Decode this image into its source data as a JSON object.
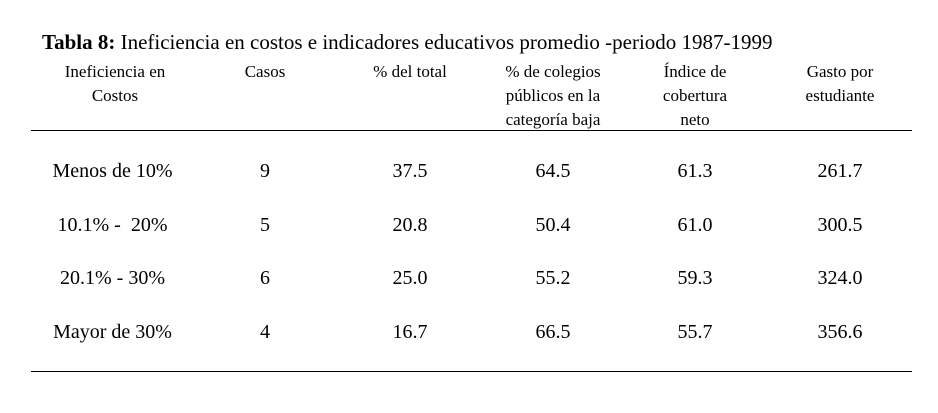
{
  "caption": {
    "label": "Tabla 8:",
    "text": " Ineficiencia en costos e indicadores educativos promedio -periodo 1987-1999"
  },
  "headers": [
    "Ineficiencia en\nCostos",
    "Casos",
    "% del total",
    "% de colegios\npúblicos en la\ncategoría baja",
    "Índice de\ncobertura\nneto",
    "Gasto por\nestudiante"
  ],
  "rows": [
    [
      "Menos de 10%",
      "9",
      "37.5",
      "64.5",
      "61.3",
      "261.7"
    ],
    [
      "10.1% -  20%",
      "5",
      "20.8",
      "50.4",
      "61.0",
      "300.5"
    ],
    [
      "20.1% - 30%",
      "6",
      "25.0",
      "55.2",
      "59.3",
      "324.0"
    ],
    [
      "Mayor de 30%",
      "4",
      "16.7",
      "66.5",
      "55.7",
      "356.6"
    ]
  ]
}
